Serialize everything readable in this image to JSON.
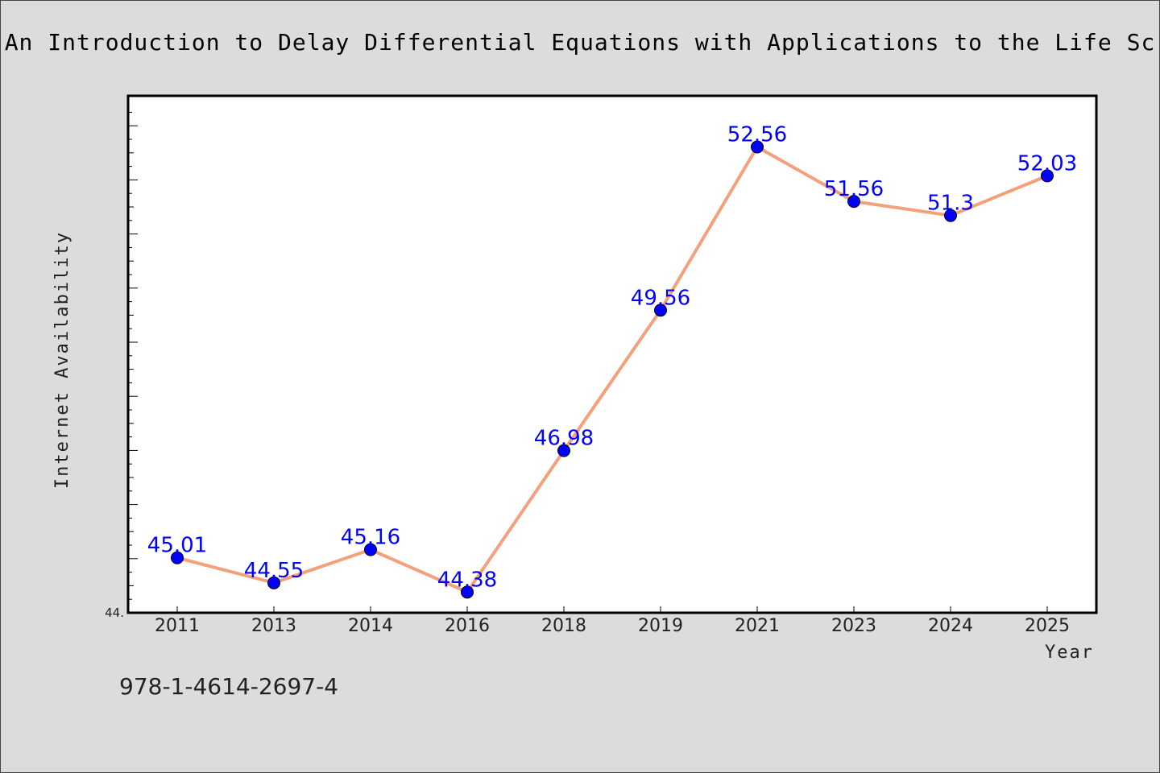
{
  "chart_data": {
    "type": "line",
    "title": "An Introduction to Delay Differential Equations with Applications to the Life Sc",
    "xlabel": "Year",
    "ylabel": "Internet Availability",
    "categories": [
      "2011",
      "2013",
      "2014",
      "2016",
      "2018",
      "2019",
      "2021",
      "2023",
      "2024",
      "2025"
    ],
    "series": [
      {
        "values": [
          45.01,
          44.55,
          45.16,
          44.38,
          46.98,
          49.56,
          52.56,
          51.56,
          51.3,
          52.03
        ],
        "labels": [
          "45.01",
          "44.55",
          "45.16",
          "44.38",
          "46.98",
          "49.56",
          "52.56",
          "51.56",
          "51.3",
          "52.03"
        ],
        "line_color": "#f4a07a",
        "marker_color": "#0000ff"
      }
    ],
    "ylim": [
      44.0,
      53.5
    ],
    "y_tick_label": "44.",
    "grid": false
  },
  "caption": "978-1-4614-2697-4"
}
